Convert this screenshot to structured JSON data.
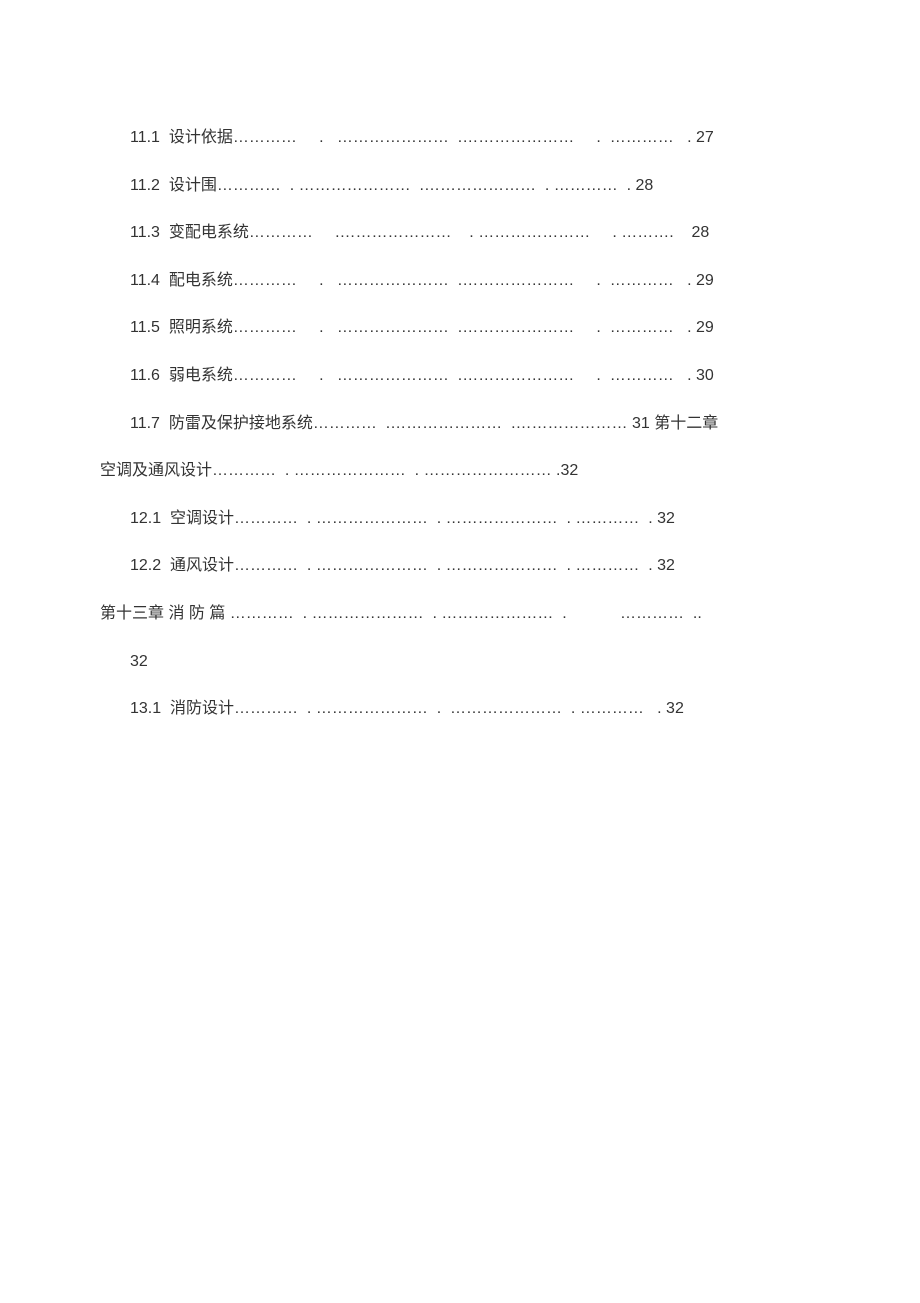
{
  "entries": [
    {
      "class": "sub-entry",
      "text": "11.1  设计依据…………     .   …………………  .…………………     .  …………   . 27"
    },
    {
      "class": "sub-entry",
      "text": "11.2  设计围…………  . …………………  .…………………  . …………  . 28"
    },
    {
      "class": "sub-entry",
      "text": "11.3  变配电系统…………     .…………………    . …………………     . ……….    28"
    },
    {
      "class": "sub-entry",
      "text": "11.4  配电系统…………     .   …………………  .…………………     .  …………   . 29"
    },
    {
      "class": "sub-entry",
      "text": "11.5  照明系统…………     .   …………………  .…………………     .  …………   . 29"
    },
    {
      "class": "sub-entry",
      "text": "11.6  弱电系统…………     .   …………………  .…………………     .  …………   . 30"
    },
    {
      "class": "sub-entry",
      "text": "11.7  防雷及保护接地系统…………  .…………………  .………………… 31 第十二章"
    },
    {
      "class": "chapter-entry",
      "text": "空调及通风设计…………  . …………………  . …………………… .32"
    },
    {
      "class": "sub-entry",
      "text": "12.1  空调设计…………  . …………………  . …………………  . …………  . 32"
    },
    {
      "class": "sub-entry",
      "text": "12.2  通风设计…………  . …………………  . …………………  . …………  . 32"
    },
    {
      "class": "chapter-entry",
      "text": "第十三章 消 防 篇 …………  . …………………  . …………………  .            …………  .."
    },
    {
      "class": "sub-entry",
      "text": "32"
    },
    {
      "class": "sub-entry",
      "text": ""
    },
    {
      "class": "sub-entry",
      "text": "13.1  消防设计…………  . …………………  .  …………………  . …………   . 32"
    }
  ]
}
